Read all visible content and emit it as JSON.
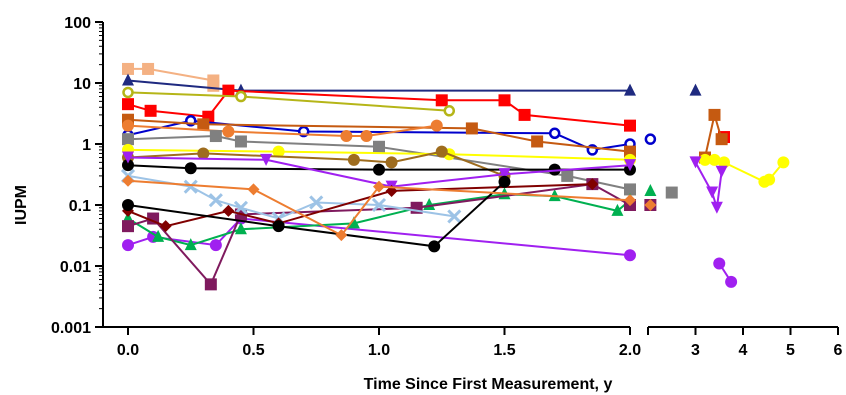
{
  "chart_data": {
    "type": "line",
    "title": "",
    "xlabel": "Time Since First Measurement, y",
    "ylabel": "IUPM",
    "yscale": "log",
    "ylim": [
      0.001,
      100
    ],
    "xlim_segment1": [
      0,
      2
    ],
    "xlim_segment2": [
      2,
      6
    ],
    "x_broken_axis": true,
    "x_ticks_segment1": [
      "0.0",
      "0.5",
      "1.0",
      "1.5",
      "2.0"
    ],
    "x_ticks_segment2": [
      "3",
      "4",
      "5",
      "6"
    ],
    "y_ticks": [
      "0.001",
      "0.01",
      "0.1",
      "1",
      "10",
      "100"
    ],
    "grid": false,
    "legend": "none",
    "series": [
      {
        "color": "#f4b183",
        "marker": "square",
        "points": [
          [
            0,
            17
          ],
          [
            0.08,
            17
          ],
          [
            0.34,
            11
          ],
          [
            0.34,
            9
          ]
        ]
      },
      {
        "color": "#1f2a80",
        "marker": "triangle",
        "points": [
          [
            0,
            11
          ],
          [
            0.45,
            7.5
          ],
          [
            2.0,
            7.5
          ],
          [
            3.0,
            7.5
          ]
        ]
      },
      {
        "color": "#ff0000",
        "marker": "square",
        "points": [
          [
            0,
            4.5
          ],
          [
            0.09,
            3.5
          ],
          [
            0.32,
            2.8
          ],
          [
            0.4,
            7.5
          ],
          [
            1.25,
            5.2
          ],
          [
            1.5,
            5.2
          ],
          [
            1.58,
            3.0
          ],
          [
            2.0,
            2.0
          ],
          [
            3.6,
            1.3
          ]
        ]
      },
      {
        "color": "#b5b518",
        "marker": "circle-open",
        "points": [
          [
            0,
            7
          ],
          [
            0.45,
            6
          ],
          [
            1.28,
            3.5
          ]
        ]
      },
      {
        "color": "#0000cc",
        "marker": "circle-open",
        "points": [
          [
            0,
            1.4
          ],
          [
            0.25,
            2.4
          ],
          [
            0.7,
            1.6
          ],
          [
            1.7,
            1.5
          ],
          [
            1.85,
            0.8
          ],
          [
            2.0,
            1.0
          ],
          [
            2.05,
            1.2
          ]
        ]
      },
      {
        "color": "#c55a11",
        "marker": "square",
        "points": [
          [
            0,
            2.5
          ],
          [
            0.3,
            2.1
          ],
          [
            1.37,
            1.8
          ],
          [
            1.63,
            1.1
          ],
          [
            2.0,
            0.75
          ],
          [
            3.2,
            0.6
          ],
          [
            3.4,
            3.0
          ],
          [
            3.55,
            1.2
          ]
        ]
      },
      {
        "color": "#ed7d31",
        "marker": "circle",
        "points": [
          [
            0,
            2.0
          ],
          [
            0.4,
            1.6
          ],
          [
            0.87,
            1.35
          ],
          [
            0.95,
            1.35
          ],
          [
            1.23,
            2.0
          ]
        ]
      },
      {
        "color": "#808080",
        "marker": "square",
        "points": [
          [
            0,
            1.2
          ],
          [
            0.35,
            1.35
          ],
          [
            0.45,
            1.1
          ],
          [
            1.0,
            0.9
          ],
          [
            1.75,
            0.3
          ],
          [
            2.0,
            0.18
          ],
          [
            2.5,
            0.16
          ]
        ]
      },
      {
        "color": "#ffff00",
        "marker": "circle",
        "points": [
          [
            0,
            0.8
          ],
          [
            0.6,
            0.75
          ],
          [
            1.28,
            0.68
          ],
          [
            2.0,
            0.55
          ],
          [
            3.2,
            0.55
          ],
          [
            3.4,
            0.55
          ],
          [
            3.6,
            0.5
          ],
          [
            4.45,
            0.24
          ],
          [
            4.55,
            0.26
          ],
          [
            4.85,
            0.5
          ]
        ]
      },
      {
        "color": "#9e6c1e",
        "marker": "circle",
        "points": [
          [
            0,
            0.6
          ],
          [
            0.3,
            0.7
          ],
          [
            0.9,
            0.55
          ],
          [
            1.05,
            0.5
          ],
          [
            1.25,
            0.75
          ],
          [
            1.5,
            0.3
          ]
        ]
      },
      {
        "color": "#000000",
        "marker": "circle",
        "points": [
          [
            0,
            0.45
          ],
          [
            0.25,
            0.4
          ],
          [
            1.0,
            0.38
          ],
          [
            1.7,
            0.38
          ],
          [
            2.0,
            0.38
          ]
        ]
      },
      {
        "color": "#a020f0",
        "marker": "triangle-down",
        "points": [
          [
            0,
            0.6
          ],
          [
            0.55,
            0.55
          ],
          [
            1.05,
            0.2
          ],
          [
            1.5,
            0.32
          ],
          [
            2.0,
            0.45
          ],
          [
            3.0,
            0.5
          ],
          [
            3.35,
            0.16
          ],
          [
            3.45,
            0.09
          ],
          [
            3.55,
            0.35
          ]
        ]
      },
      {
        "color": "#a020f0",
        "marker": "circle",
        "points": [
          [
            0,
            0.022
          ],
          [
            0.1,
            0.03
          ],
          [
            0.35,
            0.022
          ],
          [
            0.45,
            0.06
          ],
          [
            2.0,
            0.015
          ],
          [
            3.5,
            0.011
          ],
          [
            3.75,
            0.0055
          ]
        ]
      },
      {
        "color": "#00b050",
        "marker": "triangle",
        "points": [
          [
            0,
            0.06
          ],
          [
            0.12,
            0.03
          ],
          [
            0.25,
            0.022
          ],
          [
            0.45,
            0.04
          ],
          [
            0.9,
            0.05
          ],
          [
            1.2,
            0.1
          ],
          [
            1.5,
            0.15
          ],
          [
            1.7,
            0.14
          ],
          [
            1.95,
            0.08
          ],
          [
            2.0,
            0.12
          ],
          [
            2.05,
            0.17
          ]
        ]
      },
      {
        "color": "#7f1a5e",
        "marker": "square",
        "points": [
          [
            0,
            0.045
          ],
          [
            0.1,
            0.06
          ],
          [
            0.33,
            0.005
          ],
          [
            0.45,
            0.07
          ],
          [
            1.15,
            0.09
          ],
          [
            1.85,
            0.22
          ],
          [
            2.0,
            0.1
          ],
          [
            2.05,
            0.1
          ]
        ]
      },
      {
        "color": "#9dc3e6",
        "marker": "x",
        "points": [
          [
            0,
            0.3
          ],
          [
            0.25,
            0.2
          ],
          [
            0.35,
            0.12
          ],
          [
            0.45,
            0.09
          ],
          [
            0.6,
            0.06
          ],
          [
            0.75,
            0.11
          ],
          [
            1.0,
            0.1
          ],
          [
            1.3,
            0.065
          ]
        ]
      },
      {
        "color": "#800000",
        "marker": "diamond",
        "points": [
          [
            0,
            0.08
          ],
          [
            0.15,
            0.045
          ],
          [
            0.4,
            0.08
          ],
          [
            0.6,
            0.05
          ],
          [
            1.05,
            0.17
          ],
          [
            1.85,
            0.22
          ]
        ]
      },
      {
        "color": "#000000",
        "marker": "circle",
        "points": [
          [
            0,
            0.1
          ],
          [
            0.6,
            0.045
          ],
          [
            1.22,
            0.021
          ],
          [
            1.5,
            0.24
          ]
        ]
      },
      {
        "color": "#ed7d31",
        "marker": "diamond",
        "points": [
          [
            0,
            0.25
          ],
          [
            0.5,
            0.18
          ],
          [
            0.85,
            0.032
          ],
          [
            1.0,
            0.2
          ],
          [
            2.0,
            0.12
          ],
          [
            2.05,
            0.1
          ]
        ]
      }
    ]
  }
}
